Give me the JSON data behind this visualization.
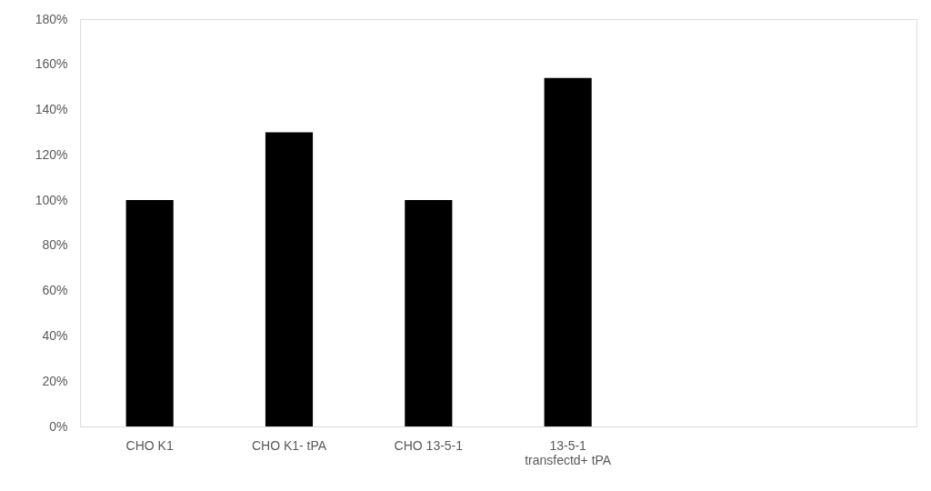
{
  "chart_data": {
    "type": "bar",
    "categories": [
      "CHO K1",
      "CHO K1- tPA",
      "CHO 13-5-1",
      "13-5-1 transfectd+ tPA",
      null,
      null
    ],
    "values": [
      100,
      130,
      100,
      154,
      null,
      null
    ],
    "color": "#000000",
    "ylim": [
      0,
      180
    ],
    "yticks": [
      {
        "value": 0,
        "label": "0%"
      },
      {
        "value": 20,
        "label": "20%"
      },
      {
        "value": 40,
        "label": "40%"
      },
      {
        "value": 60,
        "label": "60%"
      },
      {
        "value": 80,
        "label": "80%"
      },
      {
        "value": 100,
        "label": "100%"
      },
      {
        "value": 120,
        "label": "120%"
      },
      {
        "value": 140,
        "label": "140%"
      },
      {
        "value": 160,
        "label": "160%"
      },
      {
        "value": 180,
        "label": "180%"
      }
    ],
    "grid": false
  }
}
